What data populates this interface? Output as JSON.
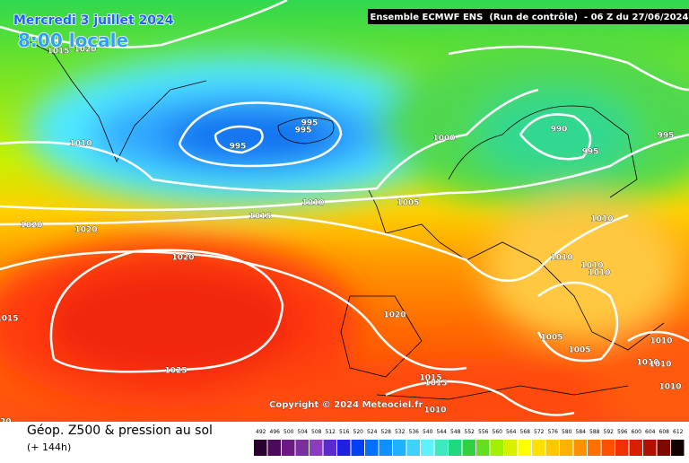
{
  "header": {
    "date": "Mercredi 3 juillet 2024",
    "time": "8:00 locale",
    "run": "Ensemble ECMWF ENS  (Run de contrôle)  - 06 Z du 27/06/2024"
  },
  "map": {
    "copyright": "Copyright © 2024 Meteociel.fr",
    "isobar_labels": [
      "1015",
      "1020",
      "1010",
      "995",
      "995",
      "995",
      "1000",
      "990",
      "995",
      "995",
      "1010",
      "1005",
      "1015",
      "1020",
      "1020",
      "1010",
      "1020",
      "1010",
      "1010",
      "1010",
      "1015",
      "1020",
      "1005",
      "1005",
      "1010",
      "1025",
      "1015",
      "1015",
      "1010",
      "1010",
      "1010",
      "1010",
      "1020"
    ]
  },
  "footer": {
    "title": "Géop. Z500 & pression au sol",
    "lead": "(+ 144h)"
  },
  "colorbar": {
    "labels": [
      492,
      496,
      500,
      504,
      508,
      512,
      516,
      520,
      524,
      528,
      532,
      536,
      540,
      544,
      548,
      552,
      556,
      560,
      564,
      568,
      572,
      576,
      580,
      584,
      588,
      592,
      596,
      600,
      604,
      608,
      612
    ],
    "colors": [
      "#2a0030",
      "#4b0a5a",
      "#6a1a80",
      "#7a2ea0",
      "#8c3cc0",
      "#5a2ad0",
      "#2020e0",
      "#0040f0",
      "#0070ff",
      "#1090ff",
      "#20b0ff",
      "#40d0ff",
      "#60f0ff",
      "#40e8c0",
      "#20d880",
      "#30d040",
      "#60e020",
      "#a0f000",
      "#d8f000",
      "#ffff00",
      "#ffe000",
      "#ffc800",
      "#ffb000",
      "#ff9000",
      "#ff7000",
      "#ff5000",
      "#f03000",
      "#d82000",
      "#b01000",
      "#800800",
      "#100000"
    ]
  }
}
